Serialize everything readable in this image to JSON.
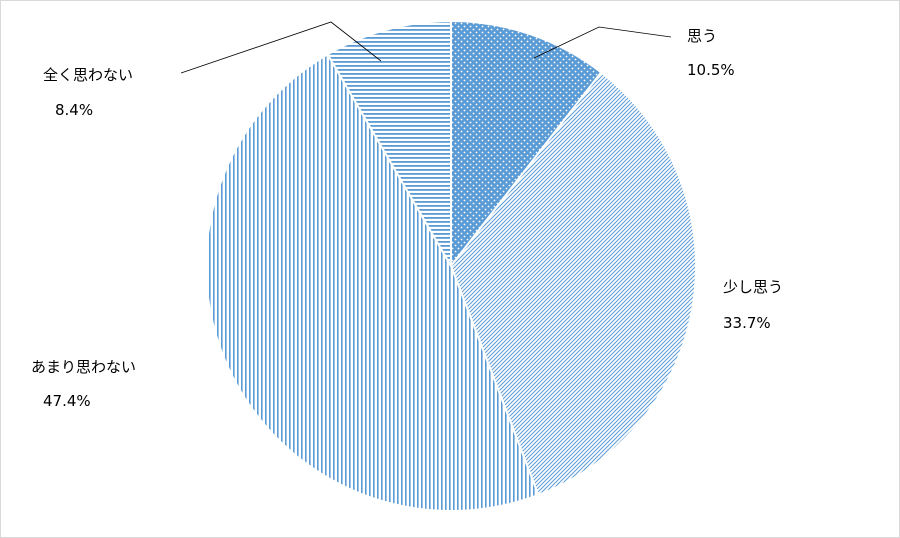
{
  "chart_data": {
    "type": "pie",
    "start_angle_deg": 0,
    "direction": "clockwise",
    "slices": [
      {
        "label": "思う",
        "value": 10.5,
        "value_text": "10.5%",
        "pattern": "dots"
      },
      {
        "label": "少し思う",
        "value": 33.7,
        "value_text": "33.7%",
        "pattern": "diagonal"
      },
      {
        "label": "あまり思わない",
        "value": 47.4,
        "value_text": "47.4%",
        "pattern": "vertical"
      },
      {
        "label": "全く思わない",
        "value": 8.4,
        "value_text": "8.4%",
        "pattern": "horizontal"
      }
    ],
    "colors": {
      "line": "#5b9bd5",
      "fill": "#5b9bd5",
      "background": "#ffffff"
    }
  }
}
